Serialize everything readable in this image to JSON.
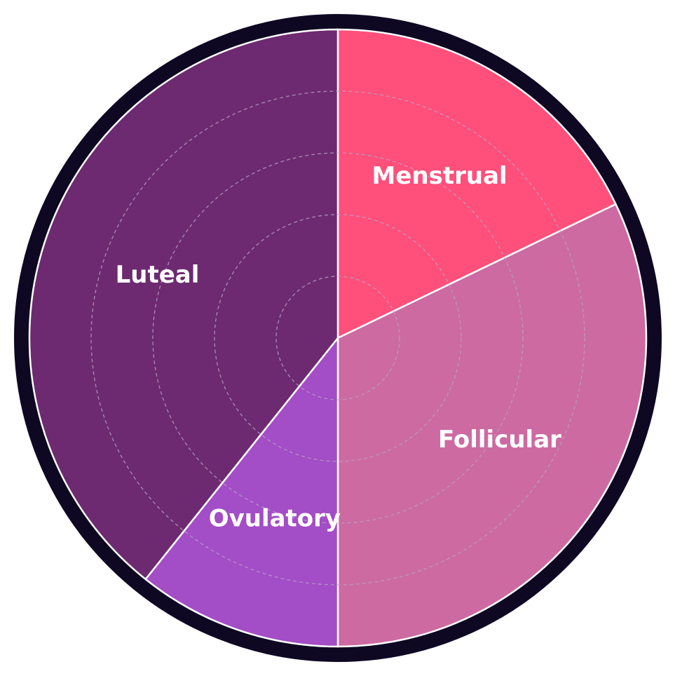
{
  "chart_data": {
    "type": "pie",
    "title": "",
    "start": "top",
    "direction": "clockwise",
    "categories": [
      "Menstrual",
      "Follicular",
      "Ovulatory",
      "Luteal"
    ],
    "values": [
      5,
      9,
      3,
      11
    ],
    "colors": [
      "#ff4f7b",
      "#cd6aa2",
      "#a34dc6",
      "#6d2a70"
    ],
    "ring_color": "#0e0823",
    "slice_edge_color": "#ffffff",
    "grid": true,
    "grid_color": "#b9a3c6",
    "grid_rings": 4,
    "legend": "none"
  }
}
